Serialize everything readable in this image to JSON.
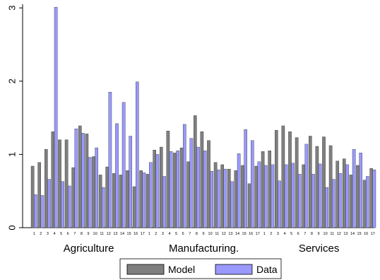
{
  "chart_data": {
    "type": "bar",
    "ylim": [
      0,
      3.05
    ],
    "yticks": [
      0,
      1,
      2,
      3
    ],
    "yticks_labels": [
      "0",
      "1",
      "2",
      "3"
    ],
    "groups": [
      {
        "label": "Agriculture",
        "categories": [
          "1",
          "2",
          "3",
          "4",
          "5",
          "6",
          "7",
          "8",
          "9",
          "10",
          "11",
          "12",
          "13",
          "14",
          "15",
          "16",
          "17"
        ],
        "model": [
          0.84,
          0.89,
          1.07,
          1.31,
          1.2,
          1.2,
          0.82,
          1.39,
          1.28,
          0.97,
          0.72,
          0.83,
          0.74,
          0.72,
          0.78,
          0.56,
          0.78
        ],
        "data": [
          0.45,
          0.44,
          0.66,
          3.01,
          0.63,
          0.57,
          1.35,
          1.29,
          0.96,
          1.09,
          0.55,
          1.85,
          1.42,
          1.71,
          1.25,
          1.99,
          0.75
        ]
      },
      {
        "label": "Manufacturing.",
        "categories": [
          "1",
          "2",
          "3",
          "4",
          "5",
          "6",
          "7",
          "8",
          "9",
          "10",
          "11",
          "12",
          "13",
          "14",
          "15",
          "16",
          "17"
        ],
        "model": [
          0.73,
          1.06,
          1.1,
          1.32,
          1.02,
          1.09,
          0.9,
          1.53,
          1.31,
          1.19,
          0.89,
          0.86,
          0.8,
          0.78,
          0.85,
          0.6,
          0.84
        ],
        "data": [
          0.89,
          1.0,
          0.7,
          1.04,
          1.05,
          1.41,
          1.22,
          1.1,
          1.05,
          0.77,
          0.79,
          0.8,
          0.63,
          1.01,
          1.34,
          1.19,
          0.9
        ]
      },
      {
        "label": "Services",
        "categories": [
          "1",
          "2",
          "3",
          "4",
          "5",
          "6",
          "7",
          "8",
          "9",
          "10",
          "11",
          "12",
          "13",
          "14",
          "15",
          "16",
          "17"
        ],
        "model": [
          1.04,
          1.05,
          1.33,
          1.39,
          1.31,
          1.23,
          0.86,
          1.25,
          1.11,
          1.24,
          1.12,
          0.91,
          0.94,
          0.72,
          0.85,
          0.65,
          0.81
        ],
        "data": [
          0.85,
          0.86,
          0.64,
          0.86,
          0.88,
          0.73,
          1.14,
          0.73,
          0.87,
          0.55,
          0.66,
          0.74,
          0.86,
          1.07,
          1.02,
          0.7,
          0.79
        ]
      }
    ],
    "series": [
      {
        "name": "Model",
        "color": "#7f7f7f"
      },
      {
        "name": "Data",
        "color": "#9999ff"
      }
    ],
    "legend": {
      "position": "bottom-center"
    },
    "grid": false
  }
}
